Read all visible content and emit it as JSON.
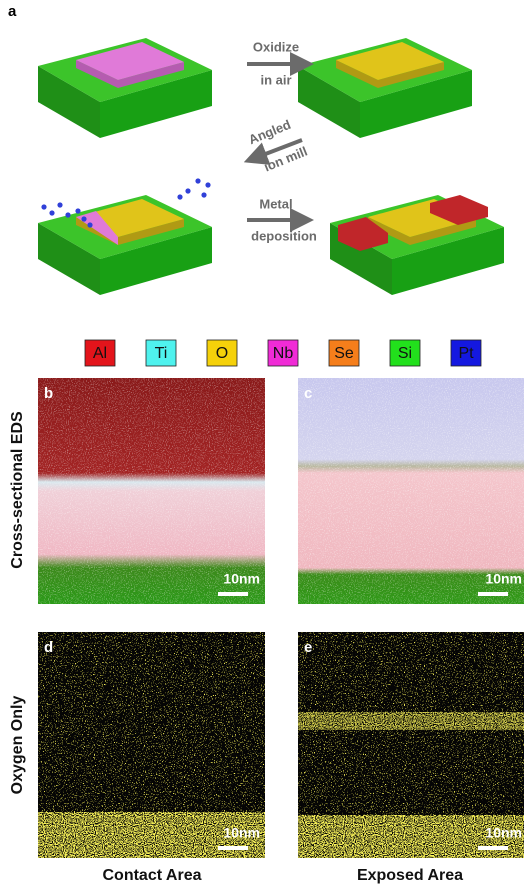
{
  "panel_a": {
    "label": "a",
    "steps": [
      {
        "line1": "Oxidize",
        "line2": "in air"
      },
      {
        "line1": "Angled",
        "line2": "ion mill"
      },
      {
        "line1": "Metal",
        "line2": "deposition"
      }
    ]
  },
  "legend": [
    {
      "element": "Al",
      "color": "#e3141b"
    },
    {
      "element": "Ti",
      "color": "#4ff2ee"
    },
    {
      "element": "O",
      "color": "#f5d10a"
    },
    {
      "element": "Nb",
      "color": "#f02bd6"
    },
    {
      "element": "Se",
      "color": "#f57e1b"
    },
    {
      "element": "Si",
      "color": "#22e01c"
    },
    {
      "element": "Pt",
      "color": "#1418e0"
    }
  ],
  "row_labels": [
    "Cross-sectional EDS",
    "Oxygen Only"
  ],
  "panels": [
    {
      "label": "b",
      "scale_bar": "10nm"
    },
    {
      "label": "c",
      "scale_bar": "10nm"
    },
    {
      "label": "d",
      "scale_bar": "10nm"
    },
    {
      "label": "e",
      "scale_bar": "10nm"
    }
  ],
  "column_labels": [
    "Contact Area",
    "Exposed Area"
  ]
}
